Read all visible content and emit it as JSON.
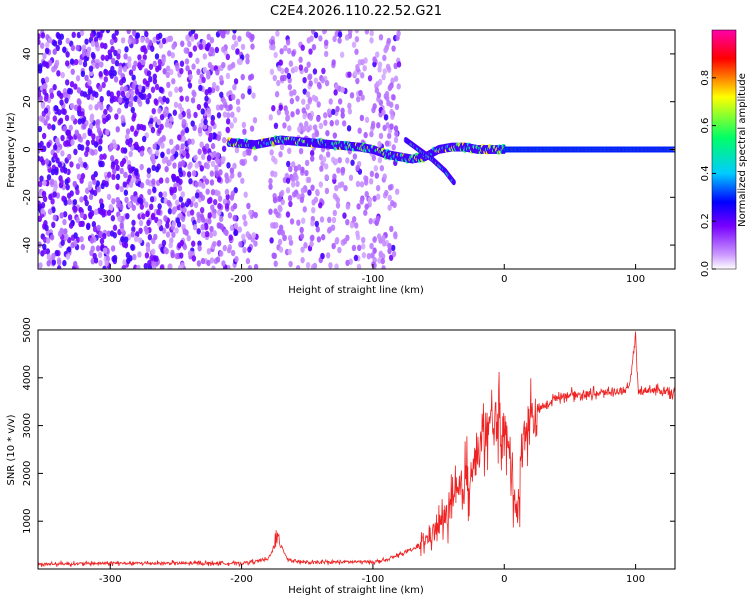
{
  "figure_title": "C2E4.2026.110.22.52.G21",
  "colors": {
    "snr_line": "#ee2222",
    "colormap": [
      "#ffffff",
      "#cc99ff",
      "#7700ff",
      "#0000ff",
      "#00ccff",
      "#00ff66",
      "#ffff00",
      "#ff0000",
      "#ff00aa"
    ]
  },
  "chart_data": [
    {
      "type": "heatmap",
      "title": "",
      "xlabel": "Height of straight line (km)",
      "ylabel": "Frequency (Hz)",
      "xlim": [
        -355,
        130
      ],
      "ylim": [
        -50,
        50
      ],
      "xticks": [
        -300,
        -200,
        -100,
        0,
        100
      ],
      "yticks": [
        -40,
        -20,
        0,
        20,
        40
      ],
      "grid": false,
      "colorbar": {
        "label": "Normalized spectral amplitude",
        "range": [
          0,
          1
        ],
        "ticks": [
          0.0,
          0.2,
          0.4,
          0.6,
          0.8
        ]
      },
      "features": {
        "noise_region_x": [
          -355,
          -80
        ],
        "gap_region_x": [
          -188,
          -178
        ],
        "main_trace": {
          "x": [
            -210,
            -190,
            -170,
            -150,
            -130,
            -110,
            -100,
            -90,
            -80,
            -70,
            -60,
            -50,
            -40,
            -30,
            -20,
            -10,
            0,
            20,
            60,
            100,
            130
          ],
          "y": [
            3,
            2,
            4,
            3,
            2,
            1,
            0,
            -2,
            -3,
            -4,
            -3,
            0,
            1,
            1,
            0,
            0,
            0,
            0,
            0,
            0,
            0
          ]
        },
        "descending_branch": {
          "x": [
            -75,
            -65,
            -55,
            -45,
            -38
          ],
          "y": [
            4,
            0,
            -4,
            -9,
            -14
          ]
        },
        "peak_amplitude_region_x": [
          0,
          130
        ]
      }
    },
    {
      "type": "line",
      "title": "",
      "xlabel": "Height of straight line (km)",
      "ylabel": "SNR (10 * v/v)",
      "xlim": [
        -355,
        130
      ],
      "ylim": [
        0,
        5000
      ],
      "xticks": [
        -300,
        -200,
        -100,
        0,
        100
      ],
      "yticks": [
        1000,
        2000,
        3000,
        4000,
        5000
      ],
      "grid": false,
      "series": [
        {
          "x": [
            -355,
            -300,
            -250,
            -200,
            -180,
            -172,
            -165,
            -150,
            -120,
            -100,
            -90,
            -80,
            -70,
            -60,
            -50,
            -40,
            -30,
            -20,
            -15,
            -10,
            -5,
            0,
            5,
            10,
            15,
            20,
            25,
            30,
            40,
            50,
            60,
            80,
            95,
            100,
            102,
            110,
            130
          ],
          "y": [
            100,
            120,
            120,
            120,
            200,
            650,
            200,
            130,
            150,
            150,
            180,
            300,
            400,
            600,
            900,
            1300,
            1800,
            2400,
            2800,
            3000,
            3100,
            2900,
            2200,
            1200,
            2900,
            3100,
            3300,
            3400,
            3600,
            3650,
            3650,
            3700,
            3750,
            4900,
            3700,
            3750,
            3700
          ]
        }
      ]
    }
  ]
}
